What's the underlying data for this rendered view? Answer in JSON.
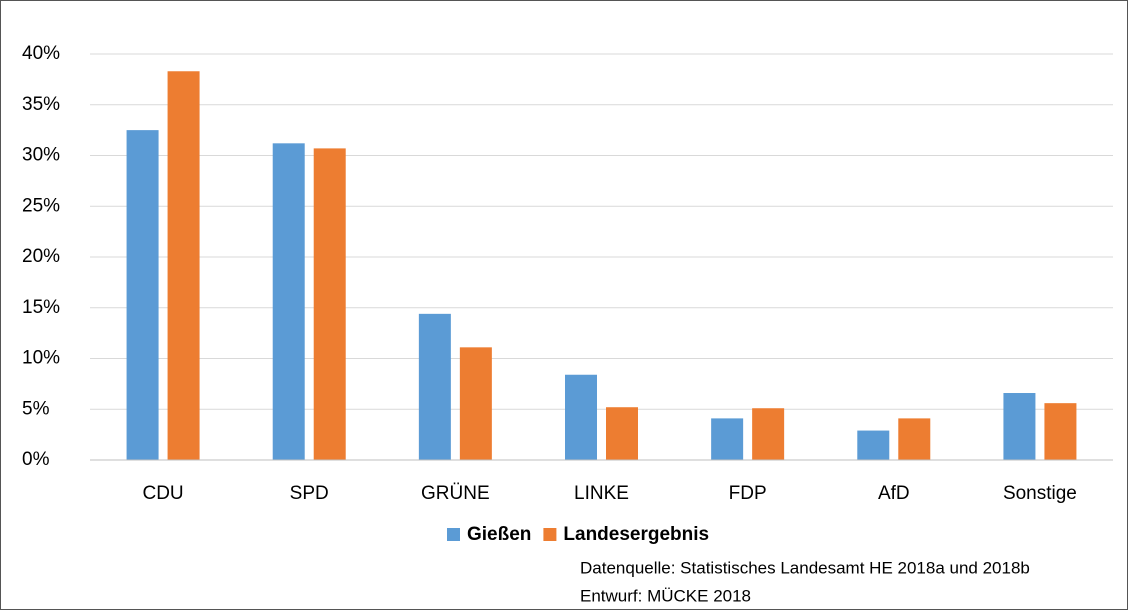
{
  "chart_data": {
    "type": "bar",
    "categories": [
      "CDU",
      "SPD",
      "GRÜNE",
      "LINKE",
      "FDP",
      "AfD",
      "Sonstige"
    ],
    "series": [
      {
        "name": "Gießen",
        "color": "#5b9bd5",
        "values": [
          32.5,
          31.2,
          14.4,
          8.4,
          4.1,
          2.9,
          6.6
        ]
      },
      {
        "name": "Landesergebnis",
        "color": "#ed7d31",
        "values": [
          38.3,
          30.7,
          11.1,
          5.2,
          5.1,
          4.1,
          5.6
        ]
      }
    ],
    "ylim": [
      0,
      40
    ],
    "yticks": [
      {
        "value": 0,
        "label": "0%"
      },
      {
        "value": 5,
        "label": "5%"
      },
      {
        "value": 10,
        "label": "10%"
      },
      {
        "value": 15,
        "label": "15%"
      },
      {
        "value": 20,
        "label": "20%"
      },
      {
        "value": 25,
        "label": "25%"
      },
      {
        "value": 30,
        "label": "30%"
      },
      {
        "value": 35,
        "label": "35%"
      },
      {
        "value": 40,
        "label": "40%"
      }
    ],
    "grid": true,
    "legend": "bottom",
    "annotations": [
      "Datenquelle: Statistisches Landesamt HE 2018a und 2018b",
      "Entwurf: MÜCKE 2018"
    ]
  }
}
